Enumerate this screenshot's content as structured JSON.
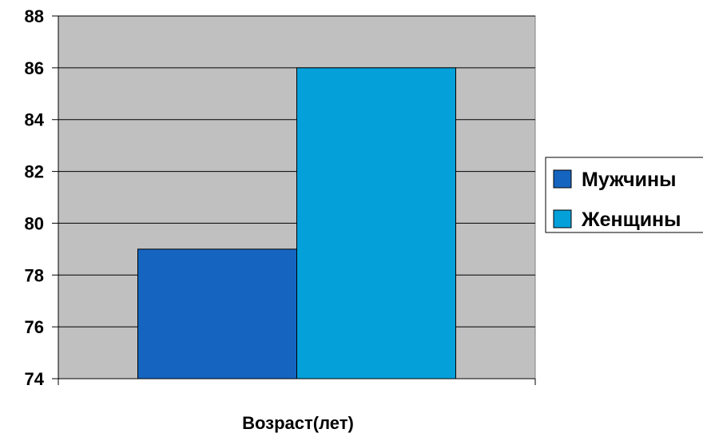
{
  "chart_data": {
    "type": "bar",
    "xlabel": "Возраст(лет)",
    "ylim": [
      74,
      88
    ],
    "yticks": [
      74,
      76,
      78,
      80,
      82,
      84,
      86,
      88
    ],
    "grid": true,
    "legend_position": "right",
    "series": [
      {
        "name": "Мужчины",
        "value": 79,
        "color": "#1565C0"
      },
      {
        "name": "Женщины",
        "value": 86,
        "color": "#03A0DA"
      }
    ]
  },
  "colors": {
    "plot_background": "#C0C0C0",
    "gridline": "#000000"
  }
}
